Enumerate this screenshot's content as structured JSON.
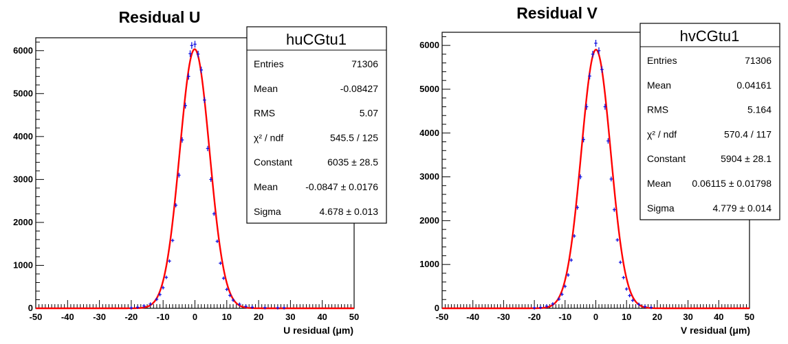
{
  "chart_data": [
    {
      "type": "histogram-fit",
      "title": "Residual U",
      "xlabel": "U residual (μm)",
      "xlim": [
        -50,
        50
      ],
      "ylim": [
        0,
        6300
      ],
      "xticks": [
        -50,
        -40,
        -30,
        -20,
        -10,
        0,
        10,
        20,
        30,
        40,
        50
      ],
      "yticks": [
        0,
        1000,
        2000,
        3000,
        4000,
        5000,
        6000
      ],
      "histogram_color": "#1010e0",
      "fit_color": "#ff0000",
      "stats": {
        "name": "huCGtu1",
        "rows": [
          {
            "label": "Entries",
            "value": "71306"
          },
          {
            "label": "Mean",
            "value": "-0.08427"
          },
          {
            "label": "RMS",
            "value": "5.07"
          },
          {
            "label": "χ² / ndf",
            "value": "545.5 / 125"
          },
          {
            "label": "Constant",
            "value": "6035 ± 28.5"
          },
          {
            "label": "Mean",
            "value": "-0.0847 ± 0.0176"
          },
          {
            "label": "Sigma",
            "value": "4.678 ± 0.013"
          }
        ]
      },
      "fit": {
        "function": "gaus",
        "constant": 6035,
        "mean": -0.0847,
        "sigma": 4.678
      },
      "points": [
        {
          "x": -20,
          "y": 10
        },
        {
          "x": -18,
          "y": 25
        },
        {
          "x": -16,
          "y": 55
        },
        {
          "x": -14,
          "y": 100
        },
        {
          "x": -12,
          "y": 210
        },
        {
          "x": -11,
          "y": 320
        },
        {
          "x": -10,
          "y": 480
        },
        {
          "x": -9,
          "y": 720
        },
        {
          "x": -8,
          "y": 1100
        },
        {
          "x": -7,
          "y": 1580
        },
        {
          "x": -6,
          "y": 2400
        },
        {
          "x": -5,
          "y": 3100
        },
        {
          "x": -4,
          "y": 3920
        },
        {
          "x": -3,
          "y": 4720
        },
        {
          "x": -2,
          "y": 5400
        },
        {
          "x": -1.5,
          "y": 5930
        },
        {
          "x": -1,
          "y": 6120
        },
        {
          "x": 0,
          "y": 6150
        },
        {
          "x": 1,
          "y": 5920
        },
        {
          "x": 2,
          "y": 5550
        },
        {
          "x": 3,
          "y": 4850
        },
        {
          "x": 4,
          "y": 3720
        },
        {
          "x": 5,
          "y": 3000
        },
        {
          "x": 6,
          "y": 2200
        },
        {
          "x": 7,
          "y": 1560
        },
        {
          "x": 8,
          "y": 1050
        },
        {
          "x": 9,
          "y": 700
        },
        {
          "x": 10,
          "y": 440
        },
        {
          "x": 11,
          "y": 300
        },
        {
          "x": 12,
          "y": 190
        },
        {
          "x": 14,
          "y": 95
        },
        {
          "x": 16,
          "y": 45
        },
        {
          "x": 18,
          "y": 25
        },
        {
          "x": 22,
          "y": 15
        },
        {
          "x": 26,
          "y": 12
        },
        {
          "x": 28,
          "y": 12
        }
      ]
    },
    {
      "type": "histogram-fit",
      "title": "Residual V",
      "xlabel": "V residual (μm)",
      "xlim": [
        -50,
        50
      ],
      "ylim": [
        0,
        6300
      ],
      "xticks": [
        -50,
        -40,
        -30,
        -20,
        -10,
        0,
        10,
        20,
        30,
        40,
        50
      ],
      "yticks": [
        0,
        1000,
        2000,
        3000,
        4000,
        5000,
        6000
      ],
      "histogram_color": "#1010e0",
      "fit_color": "#ff0000",
      "stats": {
        "name": "hvCGtu1",
        "rows": [
          {
            "label": "Entries",
            "value": "71306"
          },
          {
            "label": "Mean",
            "value": "0.04161"
          },
          {
            "label": "RMS",
            "value": "5.164"
          },
          {
            "label": "χ² / ndf",
            "value": "570.4 / 117"
          },
          {
            "label": "Constant",
            "value": "5904 ± 28.1"
          },
          {
            "label": "Mean",
            "value": "0.06115 ± 0.01798"
          },
          {
            "label": "Sigma",
            "value": "4.779 ± 0.014"
          }
        ]
      },
      "fit": {
        "function": "gaus",
        "constant": 5904,
        "mean": 0.06115,
        "sigma": 4.779
      },
      "points": [
        {
          "x": -20,
          "y": 10
        },
        {
          "x": -18,
          "y": 20
        },
        {
          "x": -16,
          "y": 50
        },
        {
          "x": -14,
          "y": 100
        },
        {
          "x": -12,
          "y": 210
        },
        {
          "x": -11,
          "y": 320
        },
        {
          "x": -10,
          "y": 500
        },
        {
          "x": -9,
          "y": 760
        },
        {
          "x": -8,
          "y": 1100
        },
        {
          "x": -7,
          "y": 1650
        },
        {
          "x": -6,
          "y": 2300
        },
        {
          "x": -5,
          "y": 3000
        },
        {
          "x": -4,
          "y": 3850
        },
        {
          "x": -3,
          "y": 4600
        },
        {
          "x": -2,
          "y": 5300
        },
        {
          "x": -1,
          "y": 5800
        },
        {
          "x": 0,
          "y": 6050
        },
        {
          "x": 1,
          "y": 5880
        },
        {
          "x": 2,
          "y": 5450
        },
        {
          "x": 3,
          "y": 4600
        },
        {
          "x": 4,
          "y": 3820
        },
        {
          "x": 5,
          "y": 2950
        },
        {
          "x": 6,
          "y": 2250
        },
        {
          "x": 7,
          "y": 1560
        },
        {
          "x": 8,
          "y": 1050
        },
        {
          "x": 9,
          "y": 700
        },
        {
          "x": 10,
          "y": 440
        },
        {
          "x": 11,
          "y": 290
        },
        {
          "x": 12,
          "y": 180
        },
        {
          "x": 14,
          "y": 90
        },
        {
          "x": 16,
          "y": 40
        },
        {
          "x": 18,
          "y": 20
        }
      ]
    }
  ]
}
